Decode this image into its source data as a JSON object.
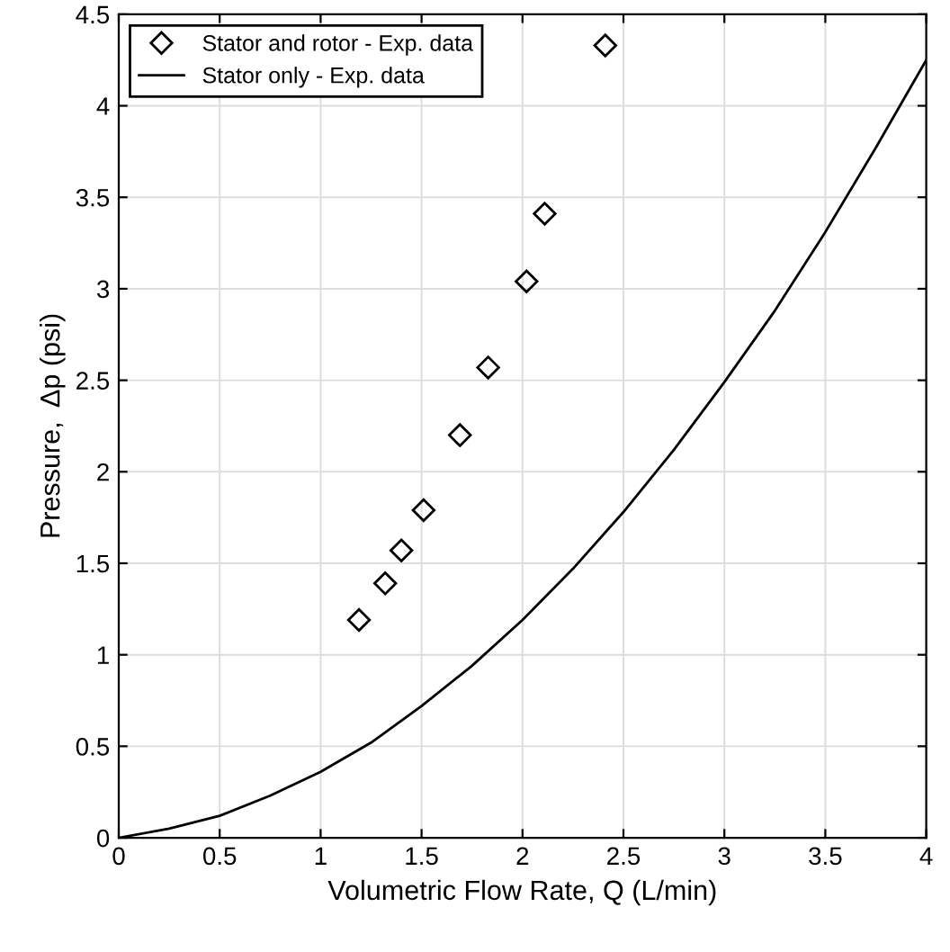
{
  "chart_data": {
    "type": "scatter",
    "xlabel": "Volumetric Flow Rate, Q (L/min)",
    "ylabel": "Pressure,  Δp (psi)",
    "series": [
      {
        "name": "Stator and rotor - Exp. data",
        "marker": "diamond",
        "color": "#000000",
        "x": [
          1.19,
          1.32,
          1.4,
          1.51,
          1.69,
          1.83,
          2.02,
          2.11,
          2.41
        ],
        "values": [
          1.19,
          1.39,
          1.57,
          1.79,
          2.2,
          2.57,
          3.04,
          3.41,
          4.33
        ]
      },
      {
        "name": "Stator only - Exp. data",
        "type": "line",
        "marker": "none",
        "line_style": "solid",
        "color": "#000000",
        "x": [
          0,
          0.25,
          0.5,
          0.75,
          1,
          1.25,
          1.5,
          1.75,
          2,
          2.25,
          2.5,
          2.75,
          3,
          3.25,
          3.5,
          3.75,
          4
        ],
        "values": [
          0,
          0.05,
          0.12,
          0.23,
          0.36,
          0.52,
          0.72,
          0.94,
          1.19,
          1.47,
          1.78,
          2.12,
          2.49,
          2.88,
          3.31,
          3.77,
          4.25
        ]
      }
    ],
    "xlim": [
      0,
      4
    ],
    "xticks": [
      0,
      0.5,
      1,
      1.5,
      2,
      2.5,
      3,
      3.5,
      4
    ],
    "ylim": [
      0,
      4.5
    ],
    "yticks": [
      0,
      0.5,
      1,
      1.5,
      2,
      2.5,
      3,
      3.5,
      4,
      4.5
    ],
    "grid": true,
    "legend": "top left"
  }
}
